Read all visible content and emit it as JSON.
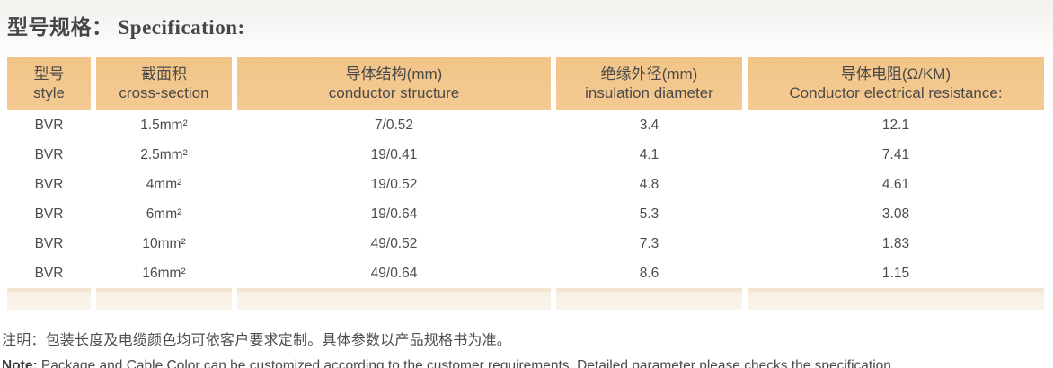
{
  "page": {
    "title_zh": "型号规格：",
    "title_en": "Specification:"
  },
  "table": {
    "headers": [
      {
        "zh": "型号",
        "en": "style"
      },
      {
        "zh": "截面积",
        "en": "cross-section"
      },
      {
        "zh": "导体结构(mm)",
        "en": "conductor structure"
      },
      {
        "zh": "绝缘外径(mm)",
        "en": "insulation diameter"
      },
      {
        "zh": "导体电阻(Ω/KM)",
        "en": "Conductor electrical resistance:"
      }
    ],
    "rows": [
      [
        "BVR",
        "1.5mm²",
        "7/0.52",
        "3.4",
        "12.1"
      ],
      [
        "BVR",
        "2.5mm²",
        "19/0.41",
        "4.1",
        "7.41"
      ],
      [
        "BVR",
        "4mm²",
        "19/0.52",
        "4.8",
        "4.61"
      ],
      [
        "BVR",
        "6mm²",
        "19/0.64",
        "5.3",
        "3.08"
      ],
      [
        "BVR",
        "10mm²",
        "49/0.52",
        "7.3",
        "1.83"
      ],
      [
        "BVR",
        "16mm²",
        "49/0.64",
        "8.6",
        "1.15"
      ]
    ]
  },
  "notes": {
    "zh": "注明：包装长度及电缆颜色均可依客户要求定制。具体参数以产品规格书为准。",
    "en_label": "Note:",
    "en_text": " Package and Cable Color can be customized according to the customer requirements. Detailed parameter please checks the specification."
  },
  "colors": {
    "header_bg": "#f3c78e",
    "stripe_bg": "#fcf5ec",
    "footer_bar_bg": "#f9f1e7",
    "text": "#4b4b4b"
  }
}
